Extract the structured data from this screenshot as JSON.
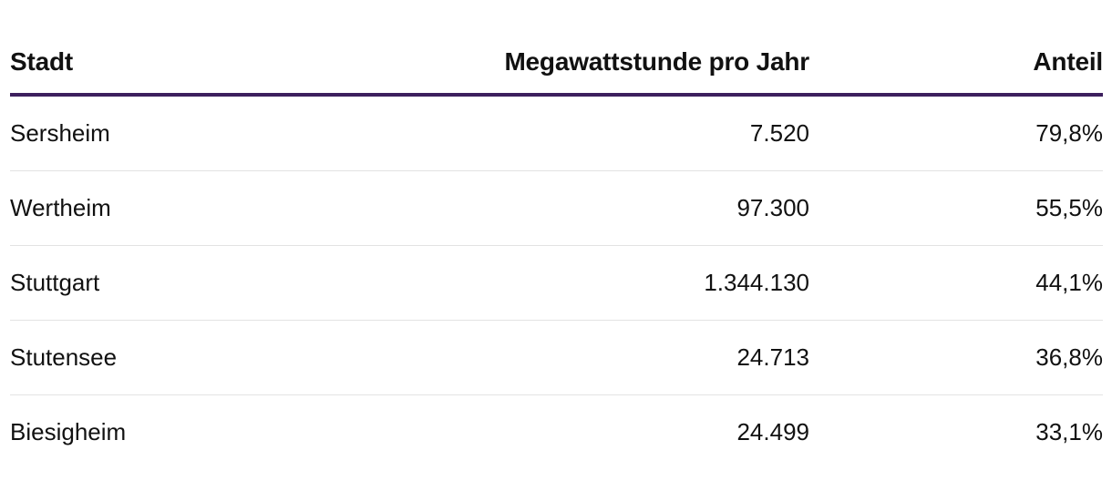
{
  "chart_data": {
    "type": "table",
    "columns": [
      "Stadt",
      "Megawattstunde pro Jahr",
      "Anteil"
    ],
    "rows": [
      {
        "city": "Sersheim",
        "mwh": "7.520",
        "share": "79,8%"
      },
      {
        "city": "Wertheim",
        "mwh": "97.300",
        "share": "55,5%"
      },
      {
        "city": "Stuttgart",
        "mwh": "1.344.130",
        "share": "44,1%"
      },
      {
        "city": "Stutensee",
        "mwh": "24.713",
        "share": "36,8%"
      },
      {
        "city": "Biesigheim",
        "mwh": "24.499",
        "share": "33,1%"
      }
    ]
  },
  "colors": {
    "header_rule": "#3d1f5e",
    "row_divider": "#e3e3e3",
    "text": "#111111"
  }
}
